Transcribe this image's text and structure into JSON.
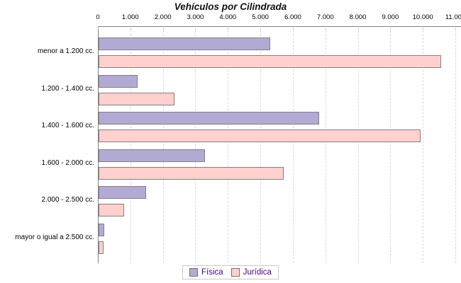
{
  "chart_data": {
    "type": "bar",
    "orientation": "horizontal",
    "title": "Vehículos por Cilindrada",
    "categories": [
      "menor a 1.200 cc.",
      "1.200 - 1.400 cc.",
      "1.400 - 1.600 cc.",
      "1.600 - 2.000 cc.",
      "2.000 - 2.500 cc.",
      "mayor o igual a 2.500 cc."
    ],
    "series": [
      {
        "name": "Física",
        "color": "#b3aad4",
        "border_color": "#808080",
        "values": [
          5280,
          1190,
          6780,
          3270,
          1470,
          170
        ]
      },
      {
        "name": "Jurídica",
        "color": "#ffd0ce",
        "border_color": "#808080",
        "values": [
          10550,
          2340,
          9900,
          5700,
          790,
          150
        ]
      }
    ],
    "x_axis": {
      "min": 0,
      "max": 11000,
      "tick_step": 1000,
      "tick_labels": [
        "0",
        "1.000",
        "2.000",
        "3.000",
        "4.000",
        "5.000",
        "6.000",
        "7.000",
        "8.000",
        "9.000",
        "10.000",
        "11.000"
      ]
    },
    "grid": "vertical-dashed",
    "legend_position": "bottom",
    "style": {
      "grid_color": "#d8d8d8",
      "axis_color": "#808080",
      "legend_text_color": "#4b0082",
      "title_color": "#111111"
    }
  }
}
